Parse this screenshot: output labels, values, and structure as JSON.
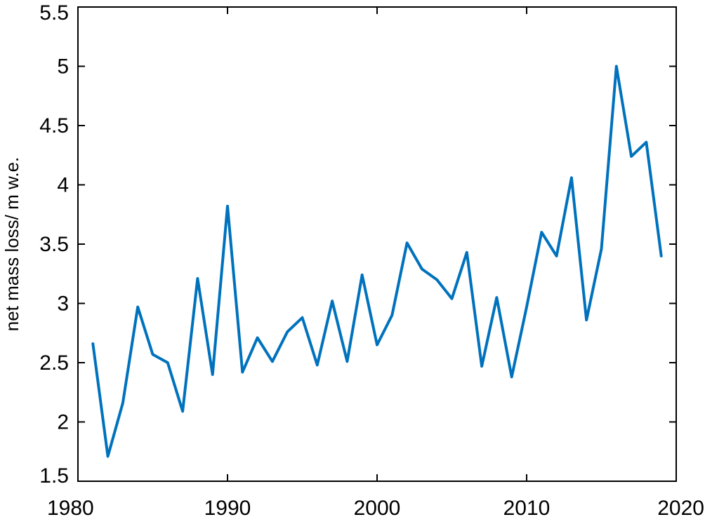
{
  "chart_data": {
    "type": "line",
    "title": "",
    "xlabel": "",
    "ylabel": "net mass loss/ m w.e.",
    "xlim": [
      1980,
      2020
    ],
    "ylim": [
      1.5,
      5.5
    ],
    "xticks": [
      1980,
      1990,
      2000,
      2010,
      2020
    ],
    "yticks": [
      1.5,
      2,
      2.5,
      3,
      3.5,
      4,
      4.5,
      5,
      5.5
    ],
    "xtick_labels": [
      "1980",
      "1990",
      "2000",
      "2010",
      "2020"
    ],
    "ytick_labels": [
      "1.5",
      "2",
      "2.5",
      "3",
      "3.5",
      "4",
      "4.5",
      "5",
      "5.5"
    ],
    "grid": false,
    "line_color": "#0072BD",
    "axis_color": "#000000",
    "series": [
      {
        "x": [
          1981,
          1982,
          1983,
          1984,
          1985,
          1986,
          1987,
          1988,
          1989,
          1990,
          1991,
          1992,
          1993,
          1994,
          1995,
          1996,
          1997,
          1998,
          1999,
          2000,
          2001,
          2002,
          2003,
          2004,
          2005,
          2006,
          2007,
          2008,
          2009,
          2010,
          2011,
          2012,
          2013,
          2014,
          2015,
          2016,
          2017,
          2018,
          2019
        ],
        "values": [
          2.66,
          1.71,
          2.16,
          2.97,
          2.57,
          2.5,
          2.09,
          3.21,
          2.4,
          3.82,
          2.42,
          2.71,
          2.51,
          2.76,
          2.88,
          2.48,
          3.02,
          2.51,
          3.24,
          2.65,
          2.9,
          3.51,
          3.29,
          3.2,
          3.04,
          3.43,
          2.47,
          3.05,
          2.38,
          2.97,
          3.6,
          3.4,
          4.06,
          2.86,
          3.46,
          5.0,
          4.24,
          4.36,
          3.4
        ]
      }
    ]
  }
}
